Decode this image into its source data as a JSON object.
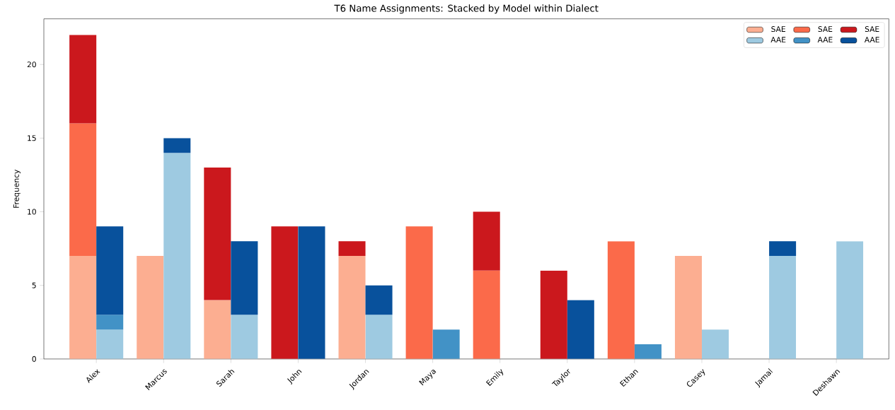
{
  "chart_data": {
    "type": "bar",
    "title": "T6 Name Assignments: Stacked by Model within Dialect",
    "ylabel": "Frequency",
    "categories": [
      "Alex",
      "Marcus",
      "Sarah",
      "John",
      "Jordan",
      "Maya",
      "Emily",
      "Taylor",
      "Ethan",
      "Casey",
      "Jamal",
      "Deshawn"
    ],
    "ylim": [
      0,
      23.1
    ],
    "yticks": [
      0,
      5,
      10,
      15,
      20
    ],
    "grid": false,
    "legend": "top right",
    "series": [
      {
        "name": "SAE",
        "color": "#fcae91",
        "values": [
          7,
          7,
          4,
          0,
          7,
          0,
          0,
          0,
          0,
          7,
          0,
          0
        ],
        "base": [
          0,
          0,
          0,
          null,
          0,
          null,
          null,
          null,
          null,
          0,
          null,
          null
        ]
      },
      {
        "name": "SAE",
        "color": "#fb6a4a",
        "values": [
          9,
          0,
          0,
          0,
          0,
          9,
          6,
          0,
          8,
          0,
          0,
          0
        ],
        "base": [
          7,
          null,
          null,
          null,
          null,
          0,
          0,
          null,
          0,
          null,
          null,
          null
        ]
      },
      {
        "name": "SAE",
        "color": "#cb181d",
        "values": [
          6,
          0,
          9,
          9,
          1,
          0,
          4,
          6,
          0,
          0,
          0,
          0
        ],
        "base": [
          16,
          null,
          4,
          0,
          7,
          null,
          6,
          0,
          null,
          null,
          null,
          null
        ]
      },
      {
        "name": "AAE",
        "color": "#9ecae1",
        "values": [
          2,
          14,
          3,
          0,
          3,
          0,
          0,
          0,
          0,
          2,
          7,
          8
        ],
        "base": [
          0,
          0,
          0,
          null,
          0,
          null,
          null,
          null,
          null,
          0,
          0,
          0
        ]
      },
      {
        "name": "AAE",
        "color": "#4292c6",
        "values": [
          1,
          0,
          0,
          0,
          0,
          2,
          0,
          0,
          1,
          0,
          0,
          0
        ],
        "base": [
          2,
          null,
          null,
          null,
          null,
          0,
          null,
          null,
          0,
          null,
          null,
          null
        ]
      },
      {
        "name": "AAE",
        "color": "#08519c",
        "values": [
          6,
          1,
          5,
          9,
          2,
          0,
          0,
          4,
          0,
          0,
          1,
          0
        ],
        "base": [
          3,
          14,
          3,
          0,
          3,
          null,
          null,
          0,
          null,
          null,
          7,
          null
        ]
      }
    ]
  }
}
